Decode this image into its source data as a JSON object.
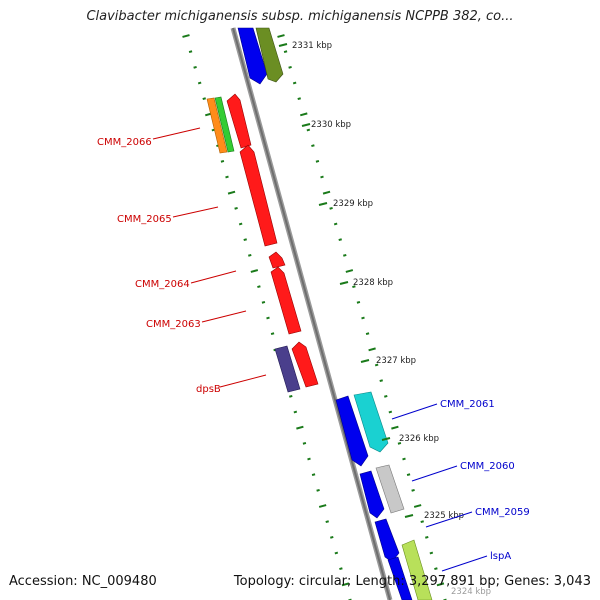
{
  "title": "Clavibacter michiganensis subsp. michiganensis NCPPB 382, co...",
  "footer": {
    "accession": "Accession: NC_009480",
    "topology": "Topology: circular; Length: 3,297,891 bp; Genes: 3,043"
  },
  "colors": {
    "backbone": "#8a8a8a",
    "tick": "#1a7a1a",
    "label_red": "#cc0000",
    "label_blue": "#0000cc"
  },
  "kbp_labels": [
    "2331 kbp",
    "2330 kbp",
    "2329 kbp",
    "2328 kbp",
    "2327 kbp",
    "2326 kbp",
    "2325 kbp",
    "2324 kbp"
  ],
  "gene_labels": {
    "cmm_2066": "CMM_2066",
    "cmm_2065": "CMM_2065",
    "cmm_2064": "CMM_2064",
    "cmm_2063": "CMM_2063",
    "dpsb": "dpsB",
    "cmm_2061": "CMM_2061",
    "cmm_2060": "CMM_2060",
    "cmm_2059": "CMM_2059",
    "lspa": "lspA"
  }
}
